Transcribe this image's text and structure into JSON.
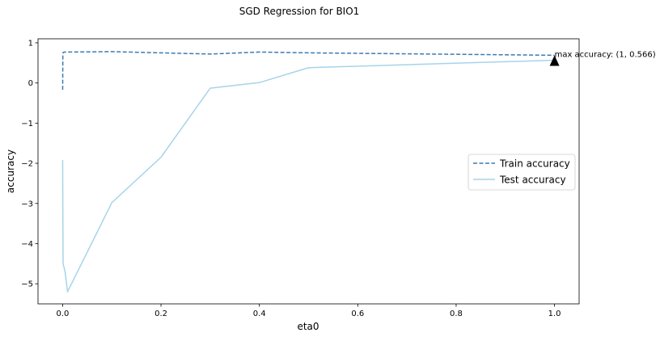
{
  "chart_data": {
    "type": "line",
    "title": "SGD Regression for BIO1",
    "xlabel": "eta0",
    "ylabel": "accuracy",
    "xlim": [
      -0.05,
      1.05
    ],
    "ylim": [
      -5.5,
      1.1
    ],
    "xticks": [
      0.0,
      0.2,
      0.4,
      0.6,
      0.8,
      1.0
    ],
    "xtick_labels": [
      "0.0",
      "0.2",
      "0.4",
      "0.6",
      "0.8",
      "1.0"
    ],
    "yticks": [
      1,
      0,
      -1,
      -2,
      -3,
      -4,
      -5
    ],
    "ytick_labels": [
      "1",
      "0",
      "−1",
      "−2",
      "−3",
      "−4",
      "−5"
    ],
    "grid": false,
    "legend_position": "center-right",
    "series": [
      {
        "name": "Train accuracy",
        "style": "dashed",
        "color": "#3b7bb0",
        "x": [
          0.0001,
          0.0005,
          0.001,
          0.005,
          0.01,
          0.1,
          0.2,
          0.3,
          0.4,
          0.5,
          1.0
        ],
        "y": [
          -0.17,
          0.7,
          0.76,
          0.77,
          0.77,
          0.78,
          0.75,
          0.72,
          0.77,
          0.75,
          0.69
        ]
      },
      {
        "name": "Test accuracy",
        "style": "solid",
        "color": "#a6d4ea",
        "x": [
          0.0001,
          0.0005,
          0.001,
          0.005,
          0.01,
          0.1,
          0.2,
          0.3,
          0.4,
          0.5,
          1.0
        ],
        "y": [
          -1.92,
          -3.3,
          -4.5,
          -4.7,
          -5.2,
          -2.98,
          -1.85,
          -0.13,
          0.01,
          0.38,
          0.566
        ]
      }
    ],
    "annotation": {
      "text": "max accuracy: (1, 0.566)",
      "x": 1.0,
      "y": 0.566,
      "marker": "triangle",
      "marker_color": "#000000"
    }
  }
}
